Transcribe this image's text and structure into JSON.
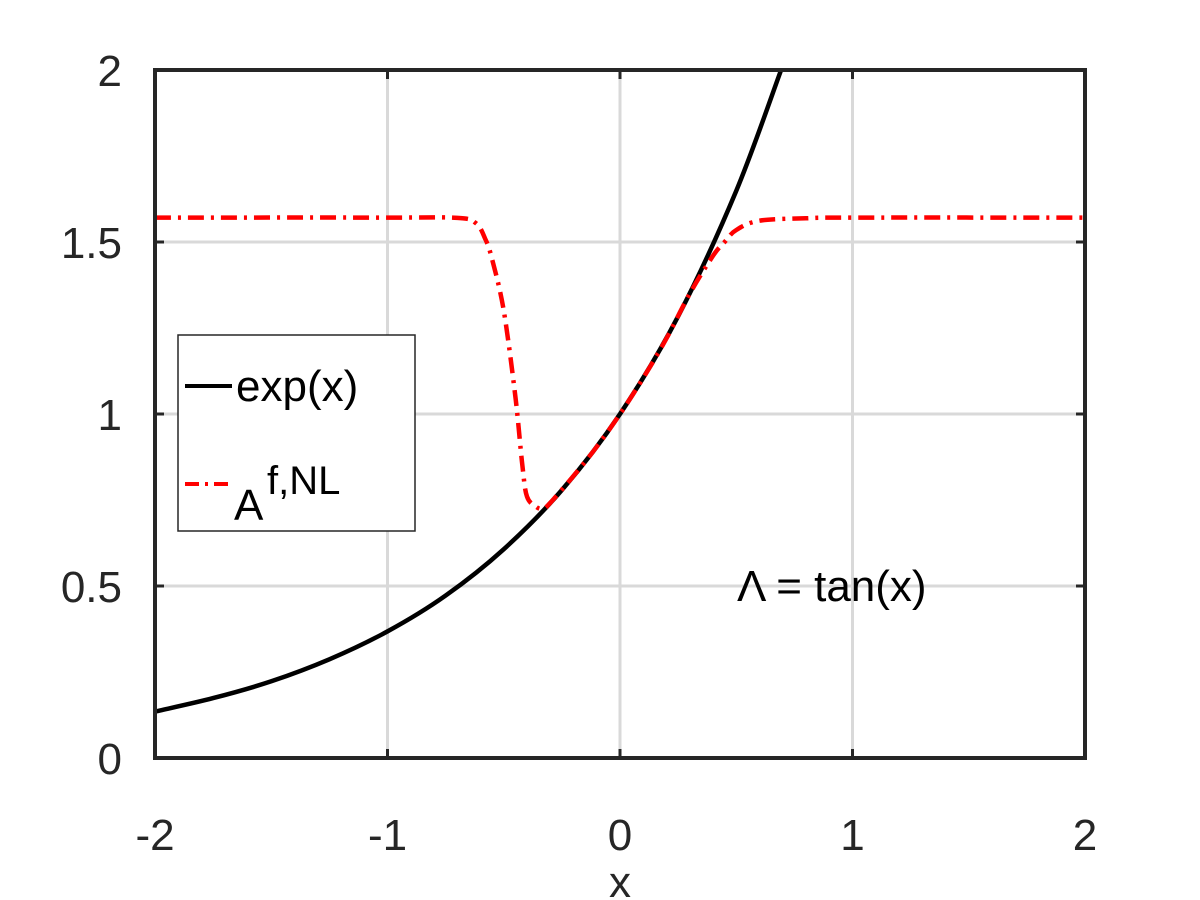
{
  "chart_data": {
    "type": "line",
    "title": "",
    "xlabel": "x",
    "ylabel": "",
    "xlim": [
      -2,
      2
    ],
    "ylim": [
      0,
      2
    ],
    "xticks": [
      -2,
      -1,
      0,
      1,
      2
    ],
    "yticks": [
      0,
      0.5,
      1,
      1.5,
      2
    ],
    "xtick_labels": [
      "-2",
      "-1",
      "0",
      "1",
      "2"
    ],
    "ytick_labels": [
      "0",
      "0.5",
      "1",
      "1.5",
      "2"
    ],
    "grid": true,
    "legend_position": "left",
    "annotation": "Λ = tan(x)",
    "colors": {
      "exp": "#000000",
      "approx": "#ff0000",
      "grid": "#d9d9d9",
      "axes": "#262626"
    },
    "series": [
      {
        "name": "exp(x)",
        "style": "solid",
        "x": [
          -2.0,
          -1.75,
          -1.5,
          -1.25,
          -1.0,
          -0.75,
          -0.5,
          -0.25,
          0.0,
          0.25,
          0.5,
          0.693
        ],
        "y": [
          0.135,
          0.174,
          0.223,
          0.287,
          0.368,
          0.472,
          0.607,
          0.779,
          1.0,
          1.284,
          1.649,
          2.0
        ]
      },
      {
        "name": "A",
        "name_superscript": "f,NL",
        "style": "dashdot",
        "x": [
          -2.0,
          -1.0,
          -0.7,
          -0.62,
          -0.58,
          -0.55,
          -0.5,
          -0.45,
          -0.42,
          -0.4,
          -0.36,
          -0.33,
          -0.3,
          -0.2,
          -0.1,
          0.0,
          0.1,
          0.2,
          0.3,
          0.4,
          0.45,
          0.5,
          0.6,
          0.8,
          1.0,
          2.0
        ],
        "y": [
          1.571,
          1.571,
          1.57,
          1.555,
          1.51,
          1.45,
          1.3,
          1.05,
          0.85,
          0.76,
          0.73,
          0.725,
          0.742,
          0.82,
          0.905,
          1.0,
          1.105,
          1.22,
          1.35,
          1.46,
          1.5,
          1.535,
          1.562,
          1.569,
          1.571,
          1.571
        ]
      }
    ]
  }
}
